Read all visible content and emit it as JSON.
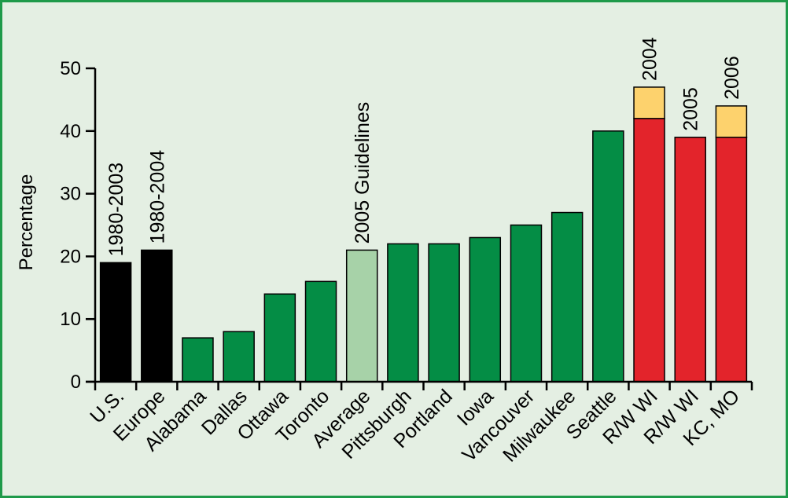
{
  "chart_data": {
    "type": "bar",
    "title": "",
    "xlabel": "",
    "ylabel": "Percentage",
    "ylim": [
      0,
      50
    ],
    "yticks": [
      0,
      10,
      20,
      30,
      40,
      50
    ],
    "grid": false,
    "legend": "none",
    "categories": [
      "U.S.",
      "Europe",
      "Alabama",
      "Dallas",
      "Ottawa",
      "Toronto",
      "Average",
      "Pittsburgh",
      "Portland",
      "Iowa",
      "Vancouver",
      "Milwaukee",
      "Seattle",
      "R/W WI",
      "R/W WI",
      "KC, MO"
    ],
    "bars": [
      {
        "category": "U.S.",
        "value": 19,
        "color": "#000000",
        "annotation": "1980-2003"
      },
      {
        "category": "Europe",
        "value": 21,
        "color": "#000000",
        "annotation": "1980-2004"
      },
      {
        "category": "Alabama",
        "value": 7,
        "color": "#048d45"
      },
      {
        "category": "Dallas",
        "value": 8,
        "color": "#048d45"
      },
      {
        "category": "Ottawa",
        "value": 14,
        "color": "#048d45"
      },
      {
        "category": "Toronto",
        "value": 16,
        "color": "#048d45"
      },
      {
        "category": "Average",
        "value": 21,
        "color": "#a7d2a8",
        "annotation": "2005 Guidelines"
      },
      {
        "category": "Pittsburgh",
        "value": 22,
        "color": "#048d45"
      },
      {
        "category": "Portland",
        "value": 22,
        "color": "#048d45"
      },
      {
        "category": "Iowa",
        "value": 23,
        "color": "#048d45"
      },
      {
        "category": "Vancouver",
        "value": 25,
        "color": "#048d45"
      },
      {
        "category": "Milwaukee",
        "value": 27,
        "color": "#048d45"
      },
      {
        "category": "Seattle",
        "value": 40,
        "color": "#048d45"
      },
      {
        "category": "R/W WI",
        "value": 42,
        "color": "#e3242b",
        "top_value": 47,
        "top_color": "#fdd26d",
        "annotation": "2004"
      },
      {
        "category": "R/W WI",
        "value": 39,
        "color": "#e3242b",
        "annotation": "2005"
      },
      {
        "category": "KC, MO",
        "value": 39,
        "color": "#e3242b",
        "top_value": 44,
        "top_color": "#fdd26d",
        "annotation": "2006"
      }
    ]
  }
}
